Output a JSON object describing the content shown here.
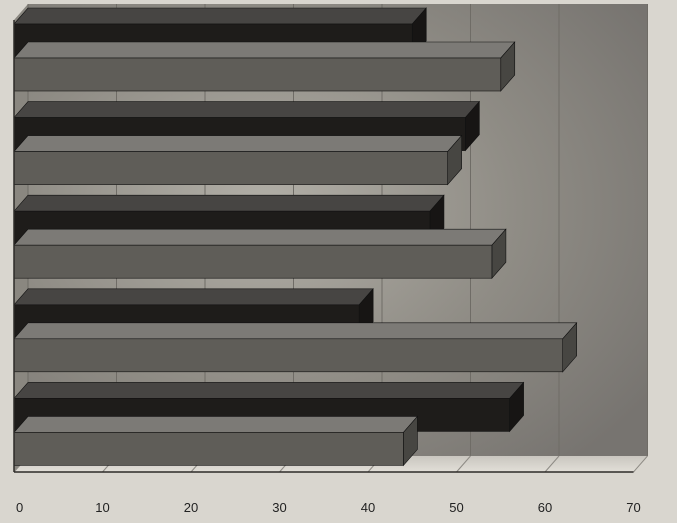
{
  "chart_data": {
    "type": "bar",
    "orientation": "horizontal",
    "style": "3d",
    "categories": [
      "",
      "",
      "",
      "",
      ""
    ],
    "series": [
      {
        "values": [
          45,
          51,
          47,
          39,
          56
        ],
        "color": "#1e1c1a"
      },
      {
        "values": [
          55,
          49,
          54,
          62,
          44
        ],
        "color": "#5f5d58"
      }
    ],
    "xlim": [
      0,
      70
    ],
    "xticks": [
      "0",
      "10",
      "20",
      "30",
      "40",
      "50",
      "60",
      "70"
    ],
    "grid": true,
    "legend": "none",
    "title": "",
    "xlabel": "",
    "ylabel": ""
  }
}
